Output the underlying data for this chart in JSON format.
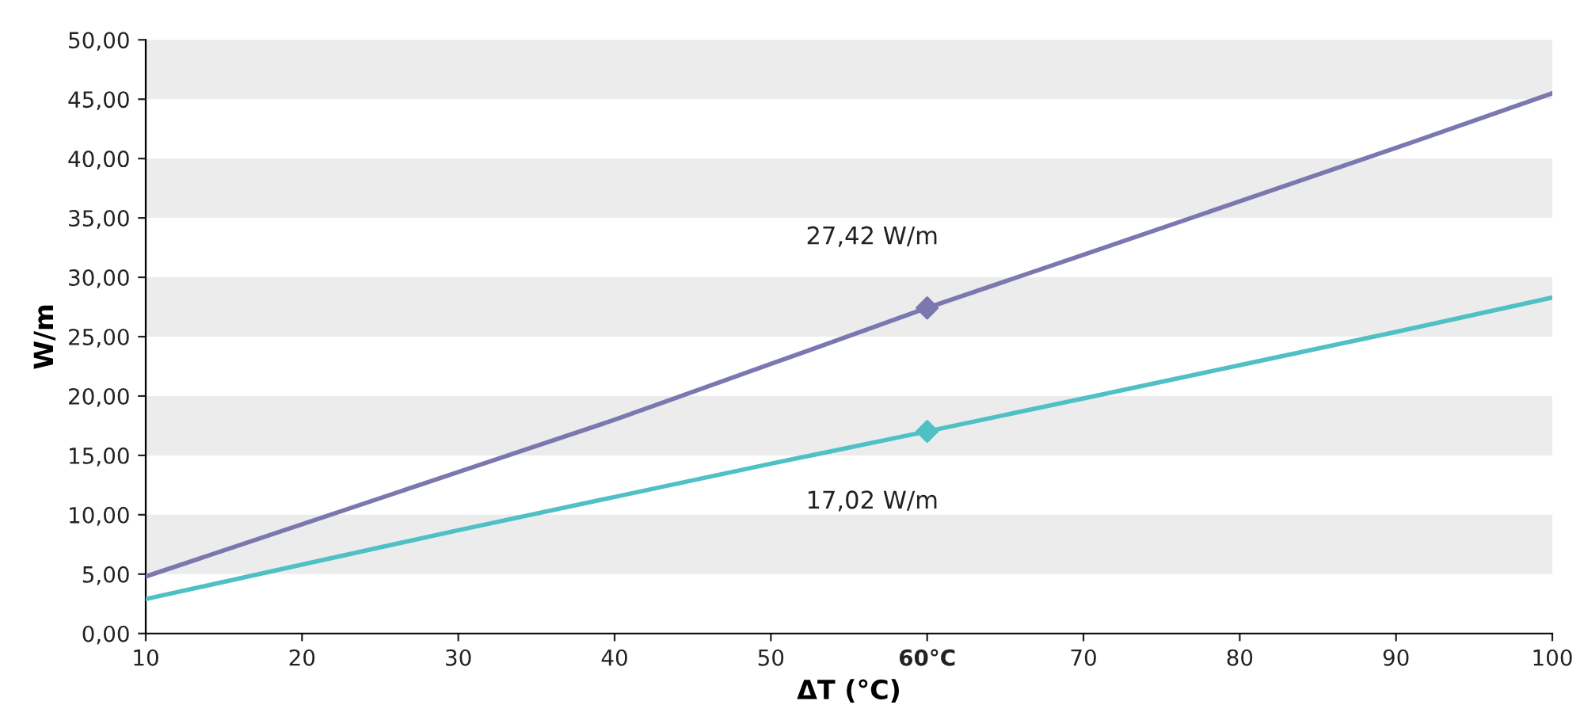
{
  "chart_data": {
    "type": "line",
    "xlabel": "ΔT (°C)",
    "ylabel": "W/m",
    "x": [
      10,
      20,
      30,
      40,
      50,
      60,
      70,
      80,
      90,
      100
    ],
    "series": [
      {
        "color": "#7b78b0",
        "values": [
          4.8,
          9.2,
          13.6,
          18.0,
          22.7,
          27.42,
          31.9,
          36.4,
          40.9,
          45.5
        ]
      },
      {
        "color": "#4fc0c4",
        "values": [
          2.9,
          5.8,
          8.7,
          11.5,
          14.3,
          17.02,
          19.8,
          22.6,
          25.4,
          28.3
        ]
      },
      {
        "type": "scatter",
        "marker": "diamond",
        "color": "#7b78b0",
        "x": [
          60
        ],
        "values": [
          27.42
        ]
      },
      {
        "type": "scatter",
        "marker": "diamond",
        "color": "#4fc0c4",
        "x": [
          60
        ],
        "values": [
          17.02
        ]
      }
    ],
    "marker": "none",
    "line_style": "solid",
    "annotations": [
      {
        "text": "27,42 W/m",
        "x": 60,
        "y": 27.42
      },
      {
        "text": "17,02 W/m",
        "x": 60,
        "y": 17.02
      }
    ],
    "xlim": [
      10,
      100
    ],
    "xticks": [
      10,
      20,
      30,
      40,
      50,
      {
        "value": 60,
        "label": "60°C"
      },
      70,
      80,
      90,
      100
    ],
    "ylim": [
      0,
      50
    ],
    "yticks": [
      {
        "value": 0,
        "label": "0,00"
      },
      {
        "value": 5,
        "label": "5,00"
      },
      {
        "value": 10,
        "label": "10,00"
      },
      {
        "value": 15,
        "label": "15,00"
      },
      {
        "value": 20,
        "label": "20,00"
      },
      {
        "value": 25,
        "label": "25,00"
      },
      {
        "value": 30,
        "label": "30,00"
      },
      {
        "value": 35,
        "label": "35,00"
      },
      {
        "value": 40,
        "label": "40,00"
      },
      {
        "value": 45,
        "label": "45,00"
      },
      {
        "value": 50,
        "label": "50,00"
      }
    ],
    "bands": [
      {
        "axis": "y",
        "from": 5,
        "to": 10,
        "color": "#ececec"
      },
      {
        "axis": "y",
        "from": 15,
        "to": 20,
        "color": "#ececec"
      },
      {
        "axis": "y",
        "from": 25,
        "to": 30,
        "color": "#ececec"
      },
      {
        "axis": "y",
        "from": 35,
        "to": 40,
        "color": "#ececec"
      },
      {
        "axis": "y",
        "from": 45,
        "to": 50,
        "color": "#ececec"
      }
    ],
    "grid": false,
    "legend": false
  }
}
